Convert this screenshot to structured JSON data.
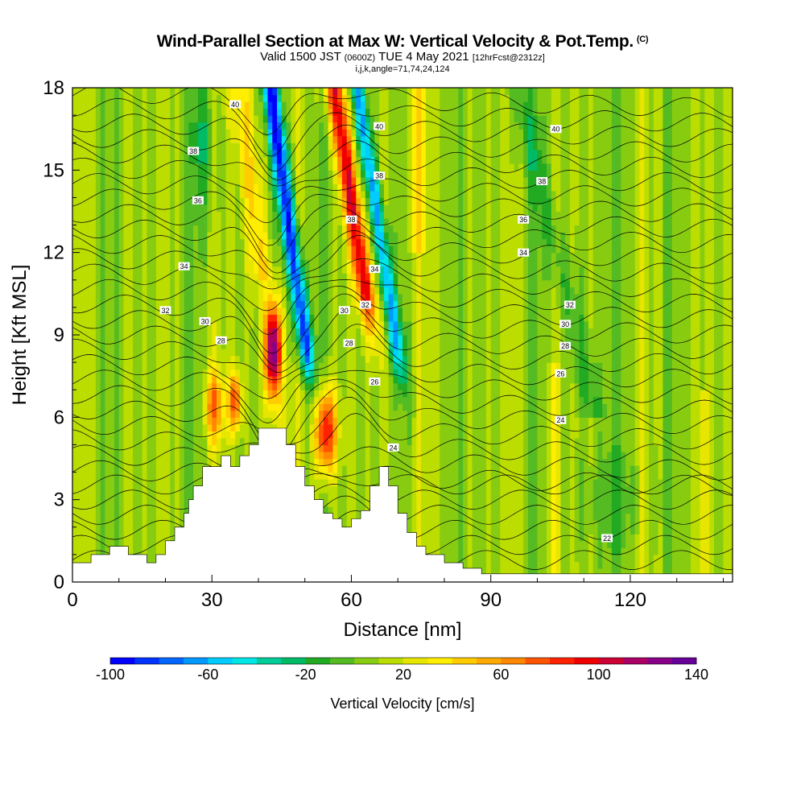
{
  "title": {
    "main": "Wind-Parallel Section at Max W: Vertical Velocity & Pot.Temp.",
    "copyright": "(C)",
    "valid_prefix": "Valid 1500 JST",
    "valid_utc": "(0600Z)",
    "valid_date": "TUE 4 May 2021",
    "forecast_tag": "[12hrFcst@2312z]",
    "indices": "i,j,k,angle=71,74,24,124"
  },
  "colors": {
    "terrain": "#ffffff",
    "contour": "#000000",
    "scale": [
      "#0000ff",
      "#0033ff",
      "#0066ff",
      "#0099ff",
      "#00ccff",
      "#00e6e6",
      "#00cc99",
      "#00bb66",
      "#22aa22",
      "#55bb22",
      "#88cc11",
      "#bbdd00",
      "#e6e600",
      "#ffee00",
      "#ffcc00",
      "#ffaa00",
      "#ff8800",
      "#ff5500",
      "#ff2200",
      "#ee0000",
      "#cc0033",
      "#aa0066",
      "#880088",
      "#660099"
    ]
  },
  "chart_data": {
    "type": "heatmap",
    "xlabel": "Distance [nm]",
    "ylabel": "Height [Kft MSL]",
    "xlim": [
      0,
      142
    ],
    "ylim": [
      0,
      18
    ],
    "xticks": [
      0,
      30,
      60,
      90,
      120
    ],
    "yticks": [
      0,
      3,
      6,
      9,
      12,
      15,
      18
    ],
    "colorbar": {
      "label": "Vertical Velocity [cm/s]",
      "min": -100,
      "max": 140,
      "step": 10,
      "tick_labels": [
        -100,
        -60,
        -20,
        20,
        60,
        100,
        140
      ]
    },
    "contour_field": "Potential temperature",
    "contour_labels": [
      {
        "text": "40",
        "x": 35,
        "y": 17.4
      },
      {
        "text": "38",
        "x": 26,
        "y": 15.7
      },
      {
        "text": "36",
        "x": 27,
        "y": 13.9
      },
      {
        "text": "34",
        "x": 24,
        "y": 11.5
      },
      {
        "text": "32",
        "x": 20,
        "y": 9.9
      },
      {
        "text": "30",
        "x": 28.5,
        "y": 9.5
      },
      {
        "text": "28",
        "x": 32,
        "y": 8.8
      },
      {
        "text": "40",
        "x": 66,
        "y": 16.6
      },
      {
        "text": "38",
        "x": 66,
        "y": 14.8
      },
      {
        "text": "38",
        "x": 60,
        "y": 13.2
      },
      {
        "text": "34",
        "x": 65,
        "y": 11.4
      },
      {
        "text": "32",
        "x": 63,
        "y": 10.1
      },
      {
        "text": "30",
        "x": 58.5,
        "y": 9.9
      },
      {
        "text": "28",
        "x": 59.5,
        "y": 8.7
      },
      {
        "text": "26",
        "x": 65,
        "y": 7.3
      },
      {
        "text": "24",
        "x": 69,
        "y": 4.9
      },
      {
        "text": "40",
        "x": 104,
        "y": 16.5
      },
      {
        "text": "38",
        "x": 101,
        "y": 14.6
      },
      {
        "text": "36",
        "x": 97,
        "y": 13.2
      },
      {
        "text": "34",
        "x": 97,
        "y": 12.0
      },
      {
        "text": "32",
        "x": 107,
        "y": 10.1
      },
      {
        "text": "30",
        "x": 106,
        "y": 9.4
      },
      {
        "text": "28",
        "x": 106,
        "y": 8.6
      },
      {
        "text": "26",
        "x": 105,
        "y": 7.6
      },
      {
        "text": "24",
        "x": 105,
        "y": 5.9
      },
      {
        "text": "22",
        "x": 115,
        "y": 1.6
      }
    ],
    "terrain_profile": {
      "x": [
        0,
        4,
        4,
        8,
        8,
        12,
        12,
        16,
        16,
        18,
        18,
        20,
        20,
        22,
        22,
        24,
        24,
        25,
        25,
        26,
        26,
        28,
        28,
        32,
        32,
        34,
        34,
        36,
        36,
        38,
        38,
        40,
        40,
        46,
        46,
        48,
        48,
        50,
        50,
        52,
        52,
        54,
        54,
        56,
        56,
        58,
        58,
        60,
        60,
        62,
        62,
        64,
        64,
        66,
        66,
        68,
        68,
        70,
        70,
        72,
        72,
        74,
        74,
        76,
        76,
        80,
        80,
        84,
        84,
        88,
        88,
        90,
        90,
        142
      ],
      "y": [
        0.7,
        0.7,
        1.0,
        1.0,
        1.3,
        1.3,
        1.0,
        1.0,
        0.7,
        0.7,
        1.0,
        1.0,
        1.5,
        1.5,
        2.0,
        2.0,
        2.5,
        2.5,
        3.0,
        3.0,
        3.5,
        3.5,
        4.2,
        4.2,
        4.6,
        4.6,
        4.2,
        4.2,
        4.6,
        4.6,
        5.0,
        5.0,
        5.6,
        5.6,
        5.0,
        5.0,
        4.2,
        4.2,
        3.5,
        3.5,
        3.0,
        3.0,
        2.5,
        2.5,
        2.3,
        2.3,
        2.0,
        2.0,
        2.3,
        2.3,
        2.6,
        2.6,
        3.5,
        3.5,
        4.2,
        4.2,
        3.5,
        3.5,
        2.5,
        2.5,
        1.8,
        1.8,
        1.3,
        1.3,
        1.0,
        1.0,
        0.7,
        0.7,
        0.5,
        0.5,
        0.3,
        0.3,
        0.3,
        0.3
      ]
    }
  }
}
